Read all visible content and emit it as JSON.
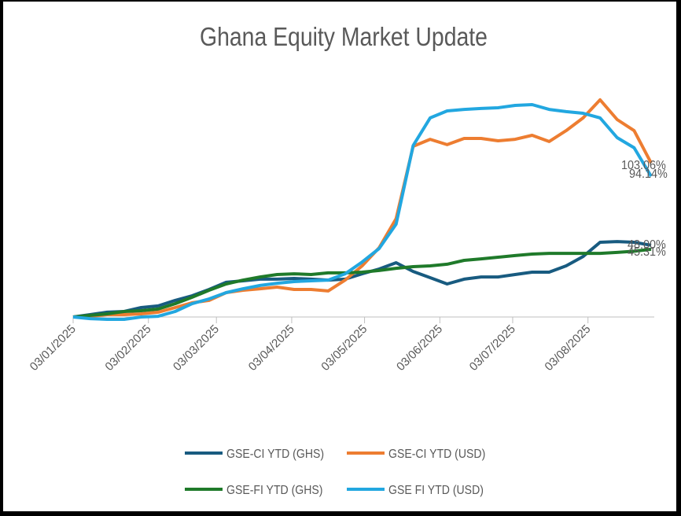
{
  "chart_data": {
    "type": "line",
    "title": "Ghana Equity Market Update",
    "x": [
      "03/01/2025",
      "10/01/2025",
      "17/01/2025",
      "24/01/2025",
      "31/01/2025",
      "07/02/2025",
      "14/02/2025",
      "21/02/2025",
      "28/02/2025",
      "07/03/2025",
      "14/03/2025",
      "21/03/2025",
      "28/03/2025",
      "04/04/2025",
      "11/04/2025",
      "18/04/2025",
      "25/04/2025",
      "02/05/2025",
      "09/05/2025",
      "16/05/2025",
      "23/05/2025",
      "30/05/2025",
      "06/06/2025",
      "13/06/2025",
      "20/06/2025",
      "27/06/2025",
      "04/07/2025",
      "11/07/2025",
      "18/07/2025",
      "25/07/2025",
      "01/08/2025",
      "08/08/2025",
      "15/08/2025",
      "22/08/2025",
      "29/08/2025"
    ],
    "xlim": [
      "03/01/2025",
      "29/08/2025"
    ],
    "xticks": [
      "03/01/2025",
      "03/02/2025",
      "03/03/2025",
      "03/04/2025",
      "03/05/2025",
      "03/06/2025",
      "03/07/2025",
      "03/08/2025"
    ],
    "ylim": [
      0,
      160
    ],
    "series": [
      {
        "name": "GSE-CI YTD (GHS)",
        "color": "#185b80",
        "values": [
          0,
          1.6,
          3.2,
          3.7,
          6.3,
          7.4,
          11.1,
          14.2,
          18.4,
          23.2,
          24.2,
          25.3,
          25.3,
          25.8,
          25.3,
          24.7,
          25.3,
          28.9,
          32.1,
          36.3,
          30.5,
          26.3,
          22.1,
          25.3,
          26.8,
          26.8,
          28.4,
          30.0,
          30.0,
          34.2,
          40.5,
          50.0,
          50.5,
          50.0,
          48.0
        ],
        "value_labels": [
          null,
          null,
          null,
          null,
          null,
          null,
          null,
          null,
          null,
          null,
          null,
          null,
          null,
          null,
          null,
          null,
          null,
          null,
          null,
          null,
          null,
          null,
          null,
          null,
          null,
          null,
          null,
          null,
          null,
          null,
          null,
          null,
          null,
          null,
          "48.00%"
        ]
      },
      {
        "name": "GSE-CI YTD (USD)",
        "color": "#ed7d31",
        "values": [
          0,
          0.5,
          1.6,
          1.6,
          2.1,
          3.2,
          6.3,
          9.5,
          11.1,
          16.3,
          17.9,
          18.9,
          20.0,
          18.4,
          18.4,
          17.4,
          24.7,
          34.2,
          46.3,
          65.8,
          114.2,
          118.9,
          115.3,
          119.5,
          119.5,
          117.9,
          118.9,
          121.6,
          117.4,
          124.7,
          133.2,
          145.3,
          132.1,
          124.7,
          103.06
        ],
        "value_labels": [
          null,
          null,
          null,
          null,
          null,
          null,
          null,
          null,
          null,
          null,
          null,
          null,
          null,
          null,
          null,
          null,
          null,
          null,
          null,
          null,
          null,
          null,
          null,
          null,
          null,
          null,
          null,
          null,
          null,
          null,
          null,
          null,
          null,
          null,
          "103.06%"
        ]
      },
      {
        "name": "GSE-FI YTD (GHS)",
        "color": "#1f7a2a",
        "values": [
          0,
          1.1,
          2.1,
          3.7,
          4.2,
          5.3,
          8.9,
          13.2,
          17.9,
          22.1,
          24.7,
          26.8,
          28.4,
          28.9,
          28.4,
          29.5,
          29.5,
          30.0,
          31.1,
          32.6,
          33.7,
          34.2,
          35.3,
          37.9,
          38.9,
          40.0,
          41.1,
          42.1,
          42.6,
          42.6,
          42.6,
          42.6,
          43.2,
          44.0,
          45.31
        ],
        "value_labels": [
          null,
          null,
          null,
          null,
          null,
          null,
          null,
          null,
          null,
          null,
          null,
          null,
          null,
          null,
          null,
          null,
          null,
          null,
          null,
          null,
          null,
          null,
          null,
          null,
          null,
          null,
          null,
          null,
          null,
          null,
          null,
          null,
          null,
          null,
          "45.31%"
        ]
      },
      {
        "name": "GSE FI YTD (USD)",
        "color": "#22a7e0",
        "values": [
          0,
          -1.1,
          -1.6,
          -1.6,
          0,
          0.5,
          3.7,
          8.9,
          12.1,
          16.3,
          18.9,
          21.1,
          22.6,
          23.7,
          24.2,
          24.7,
          28.9,
          36.8,
          45.8,
          62.1,
          114.7,
          133.2,
          137.9,
          138.9,
          139.5,
          140.0,
          141.6,
          142.1,
          138.9,
          137.4,
          136.3,
          133.2,
          120.0,
          113.2,
          94.14
        ],
        "value_labels": [
          null,
          null,
          null,
          null,
          null,
          null,
          null,
          null,
          null,
          null,
          null,
          null,
          null,
          null,
          null,
          null,
          null,
          null,
          null,
          null,
          null,
          null,
          null,
          null,
          null,
          null,
          null,
          null,
          null,
          null,
          null,
          null,
          null,
          null,
          "94.14%"
        ]
      }
    ]
  }
}
